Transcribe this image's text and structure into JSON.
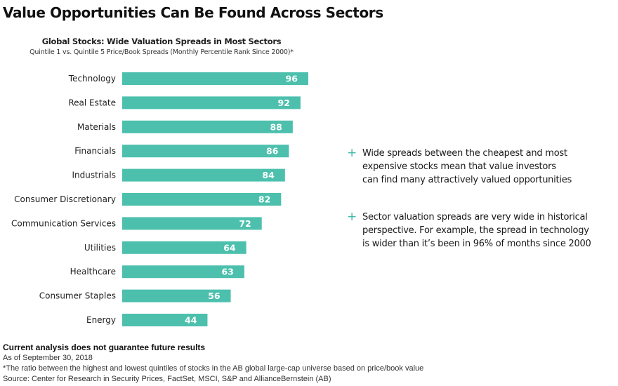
{
  "title": "Value Opportunities Can Be Found Across Sectors",
  "colors": {
    "bar": "#4cc0ad",
    "plus": "#3fb9a8"
  },
  "chart_data": {
    "type": "bar",
    "orientation": "horizontal",
    "title": "Global Stocks: Wide Valuation Spreads in Most Sectors",
    "subtitle": "Quintile 1 vs. Quintile 5 Price/Book Spreads (Monthly Percentile Rank Since 2000)*",
    "categories": [
      "Technology",
      "Real Estate",
      "Materials",
      "Financials",
      "Industrials",
      "Consumer Discretionary",
      "Communication Services",
      "Utilities",
      "Healthcare",
      "Consumer Staples",
      "Energy"
    ],
    "values": [
      96,
      92,
      88,
      86,
      84,
      82,
      72,
      64,
      63,
      56,
      44
    ],
    "xlim": [
      0,
      100
    ],
    "grid": false,
    "data_labels": "inside-end"
  },
  "bullets": [
    {
      "icon": "plus-icon",
      "text": "Wide spreads between the cheapest and most\nexpensive stocks mean that value investors\ncan find many attractively valued opportunities"
    },
    {
      "icon": "plus-icon",
      "text": "Sector valuation spreads are very wide in historical\nperspective. For example, the spread in technology\nis wider than it’s been in 96% of months since 2000"
    }
  ],
  "footer": {
    "disclaimer": "Current analysis does not guarantee future results",
    "as_of": "As of September 30, 2018",
    "note": "*The ratio between the highest and lowest quintiles of stocks in the AB global large-cap universe based on price/book value",
    "source": "Source: Center for Research in Security Prices, FactSet, MSCI, S&P and AllianceBernstein (AB)"
  }
}
